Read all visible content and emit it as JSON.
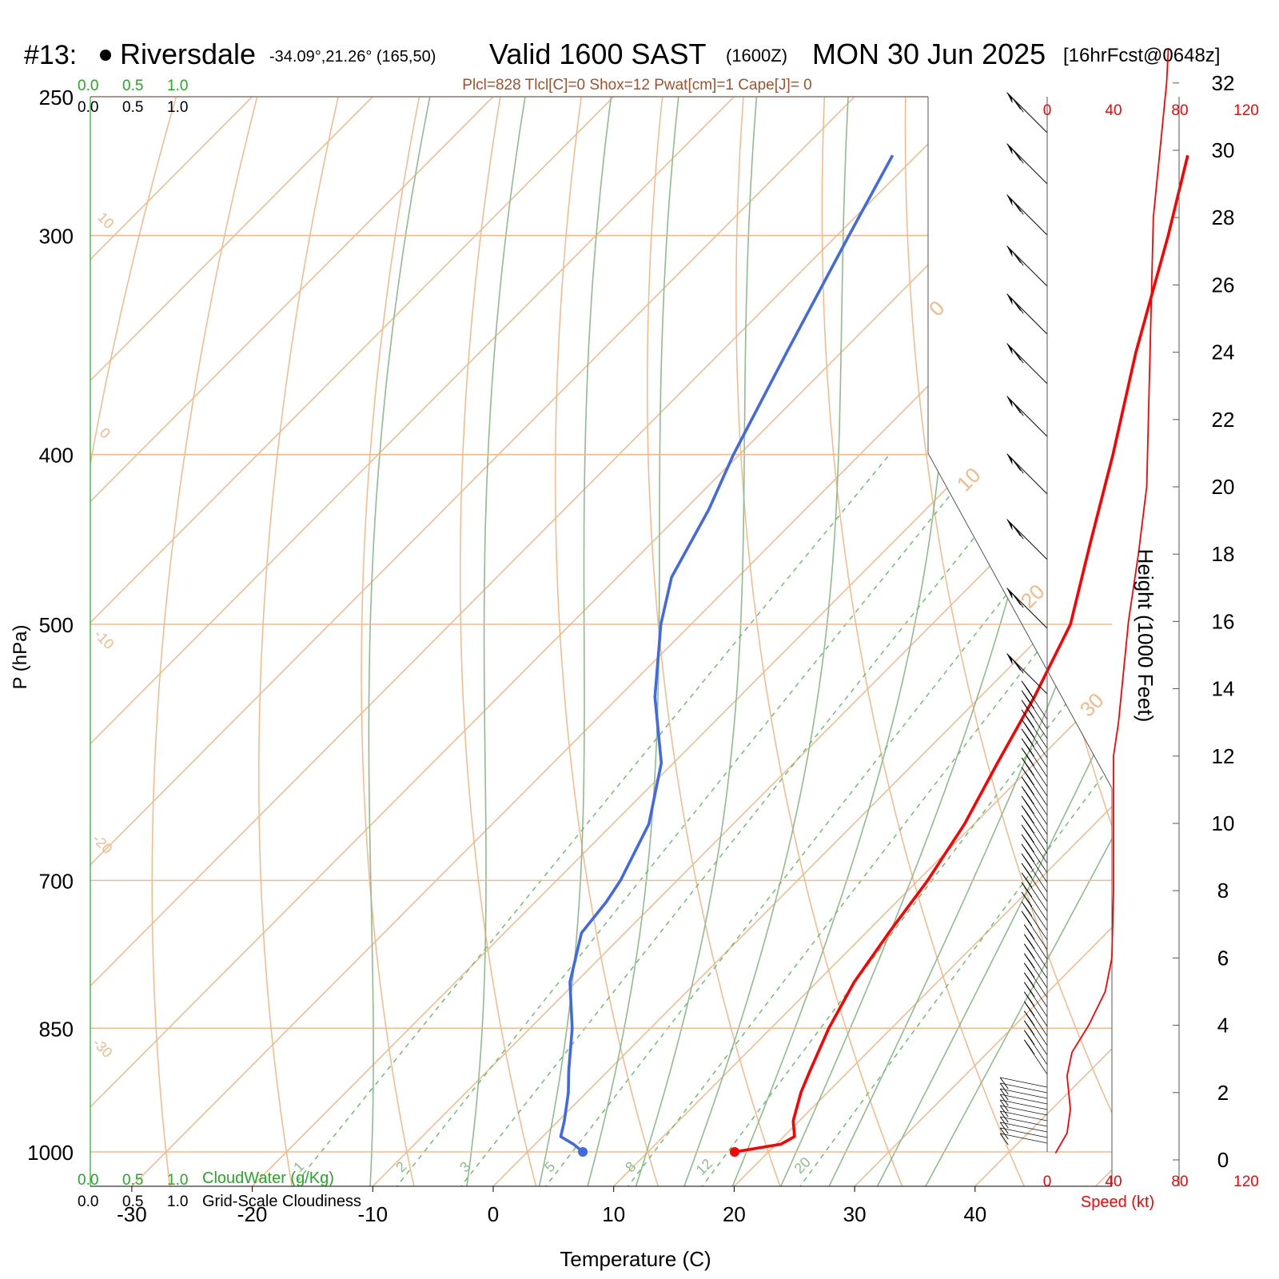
{
  "header": {
    "station_id": "#13:",
    "station_name": "Riversdale",
    "coords": "-34.09°,21.26° (165,50)",
    "valid": "Valid 1600 SAST",
    "zulu": "(1600Z)",
    "date": "MON 30 Jun 2025",
    "forecast": "[16hrFcst@0648z]",
    "indices": "Plcl=828 Tlcl[C]=0 Shox=12 Pwat[cm]=1 Cape[J]= 0"
  },
  "cloud_scale": {
    "ticks": [
      "0.0",
      "0.5",
      "1.0"
    ],
    "cloudwater_label": "CloudWater (g/Kg)",
    "cloudiness_label": "Grid-Scale Cloudiness"
  },
  "colors": {
    "temperature": "#ff0000",
    "dewpoint": "#4169e1",
    "isotherm": "#f5b888",
    "moist_adiabat": "#8fbc8f",
    "mixing_ratio": "#66bb66",
    "wind_speed": "#ff0000",
    "cloud_green": "#22aa22",
    "indices_brown": "#a0522d"
  },
  "chart_data": [
    {
      "type": "line",
      "name": "skew-t",
      "xlabel": "Temperature (C)",
      "ylabel": "P (hPa)",
      "pressure_ticks": [
        250,
        300,
        400,
        500,
        700,
        850,
        1000
      ],
      "temperature_ticks": [
        -30,
        -20,
        -10,
        0,
        10,
        20,
        30,
        40
      ],
      "isotherm_labels": [
        "10",
        "0",
        "-10",
        "-20",
        "-30",
        "0",
        "10",
        "20",
        "30"
      ],
      "mixing_ratio_labels": [
        "1",
        "2",
        "3",
        "5",
        "8",
        "12",
        "20"
      ],
      "series": [
        {
          "points": [
            [
              1000,
              17.2
            ],
            [
              990,
              20.4
            ],
            [
              980,
              20.9
            ],
            [
              960,
              19.5
            ],
            [
              925,
              17.8
            ],
            [
              900,
              16.8
            ],
            [
              850,
              14.8
            ],
            [
              800,
              13.1
            ],
            [
              750,
              11.9
            ],
            [
              700,
              10.8
            ],
            [
              650,
              9.2
            ],
            [
              600,
              6.9
            ],
            [
              550,
              4.5
            ],
            [
              500,
              1.5
            ],
            [
              450,
              -3.5
            ],
            [
              400,
              -9.0
            ],
            [
              350,
              -15.5
            ],
            [
              300,
              -22.5
            ],
            [
              270,
              -27.5
            ]
          ]
        },
        {
          "points": [
            [
              1000,
              4.6
            ],
            [
              990,
              3.2
            ],
            [
              980,
              1.5
            ],
            [
              960,
              0.5
            ],
            [
              925,
              -1.5
            ],
            [
              900,
              -3.2
            ],
            [
              850,
              -6.5
            ],
            [
              800,
              -10.5
            ],
            [
              750,
              -13.6
            ],
            [
              720,
              -14.1
            ],
            [
              700,
              -14.7
            ],
            [
              650,
              -17.0
            ],
            [
              600,
              -21.0
            ],
            [
              550,
              -27.0
            ],
            [
              500,
              -32.5
            ],
            [
              470,
              -35.5
            ],
            [
              430,
              -38.0
            ],
            [
              400,
              -40.5
            ],
            [
              350,
              -44.5
            ],
            [
              300,
              -49.0
            ],
            [
              270,
              -52.0
            ]
          ]
        }
      ]
    },
    {
      "type": "line",
      "name": "wind-profile",
      "xlabel": "Speed (kt)",
      "ylabel": "Height (1000 Feet)",
      "speed_ticks": [
        0,
        40,
        80,
        120
      ],
      "height_ticks": [
        0,
        2,
        4,
        6,
        8,
        10,
        12,
        14,
        16,
        18,
        20,
        22,
        24,
        26,
        28,
        30,
        32
      ],
      "speed_by_height": [
        [
          0.2,
          5
        ],
        [
          0.8,
          12
        ],
        [
          1.5,
          14
        ],
        [
          2.5,
          12
        ],
        [
          3.2,
          15
        ],
        [
          4,
          25
        ],
        [
          5,
          35
        ],
        [
          6,
          39
        ],
        [
          8,
          40
        ],
        [
          10,
          40
        ],
        [
          12,
          40
        ],
        [
          13,
          43
        ],
        [
          14,
          45
        ],
        [
          16,
          49
        ],
        [
          18,
          55
        ],
        [
          20,
          60
        ],
        [
          24,
          62
        ],
        [
          28,
          64
        ],
        [
          32,
          72
        ],
        [
          33,
          73
        ]
      ]
    }
  ]
}
